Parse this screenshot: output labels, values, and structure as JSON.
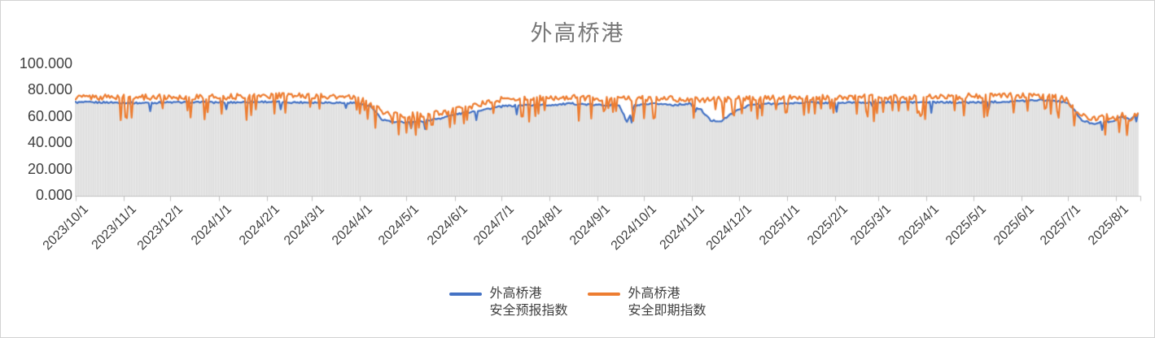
{
  "title": "外高桥港",
  "colors": {
    "series_blue": "#4472C4",
    "series_orange": "#ED7D31",
    "bars": "#D9D9D9",
    "axis_line": "#BFBFBF",
    "tick_label": "#404040",
    "title_text": "#787878"
  },
  "legend": {
    "items": [
      {
        "line1": "外高桥港",
        "line2": "安全预报指数",
        "color": "#4472C4"
      },
      {
        "line1": "外高桥港",
        "line2": "安全即期指数",
        "color": "#ED7D31"
      }
    ]
  },
  "chart_data": {
    "type": "line",
    "title": "外高桥港",
    "xlabel": "",
    "ylabel": "",
    "grid": false,
    "legend_position": "bottom",
    "ylim": [
      0,
      100
    ],
    "y_ticks": [
      [
        0,
        "0.000"
      ],
      [
        20,
        "20.000"
      ],
      [
        40,
        "40.000"
      ],
      [
        60,
        "60.000"
      ],
      [
        80,
        "80.000"
      ],
      [
        100,
        "100.000"
      ]
    ],
    "x_tick_labels": [
      "2023/10/1",
      "2023/11/1",
      "2023/12/1",
      "2024/1/1",
      "2024/2/1",
      "2024/3/1",
      "2024/4/1",
      "2024/5/1",
      "2024/6/1",
      "2024/7/1",
      "2024/8/1",
      "2024/9/1",
      "2024/10/1",
      "2024/11/1",
      "2024/12/1",
      "2025/1/1",
      "2025/2/1",
      "2025/3/1",
      "2025/4/1",
      "2025/5/1",
      "2025/6/1",
      "2025/7/1",
      "2025/8/1"
    ],
    "month_start_days": [
      0,
      31,
      61,
      92,
      123,
      152,
      183,
      213,
      244,
      274,
      305,
      336,
      366,
      397,
      427,
      458,
      489,
      517,
      548,
      578,
      609,
      639,
      670
    ],
    "total_days": 684,
    "x_unit": "daily index values from 2023/10/1 to mid-August 2025",
    "background_bars": {
      "color": "#D9D9D9",
      "mode": "min-of-series",
      "note": "light gray daily columns under the two lines"
    },
    "series": [
      {
        "name": "外高桥港安全预报指数",
        "color": "#4472C4",
        "seed": 1,
        "noise_amp": 0.7,
        "dip_rate": 0.025,
        "dip_depth": [
          3,
          8
        ],
        "points": [
          [
            0,
            71
          ],
          [
            20,
            71
          ],
          [
            40,
            70.5
          ],
          [
            60,
            71
          ],
          [
            80,
            71
          ],
          [
            100,
            71
          ],
          [
            120,
            71.5
          ],
          [
            140,
            71
          ],
          [
            160,
            71
          ],
          [
            180,
            70.5
          ],
          [
            190,
            68
          ],
          [
            197,
            58
          ],
          [
            205,
            56
          ],
          [
            215,
            56
          ],
          [
            225,
            57
          ],
          [
            235,
            59
          ],
          [
            245,
            62
          ],
          [
            255,
            64
          ],
          [
            265,
            66
          ],
          [
            275,
            68
          ],
          [
            290,
            69
          ],
          [
            305,
            69
          ],
          [
            320,
            70
          ],
          [
            335,
            69
          ],
          [
            350,
            69
          ],
          [
            355,
            56
          ],
          [
            360,
            68.5
          ],
          [
            375,
            70
          ],
          [
            385,
            69
          ],
          [
            395,
            70
          ],
          [
            403,
            65
          ],
          [
            409,
            57
          ],
          [
            416,
            57
          ],
          [
            422,
            62
          ],
          [
            428,
            66
          ],
          [
            434,
            69
          ],
          [
            445,
            70
          ],
          [
            458,
            70
          ],
          [
            470,
            71
          ],
          [
            489,
            70.5
          ],
          [
            505,
            71
          ],
          [
            517,
            71
          ],
          [
            535,
            71
          ],
          [
            548,
            71
          ],
          [
            565,
            71
          ],
          [
            578,
            71
          ],
          [
            595,
            71.5
          ],
          [
            609,
            72
          ],
          [
            620,
            73
          ],
          [
            632,
            72
          ],
          [
            639,
            71
          ],
          [
            643,
            65
          ],
          [
            648,
            57
          ],
          [
            655,
            55
          ],
          [
            662,
            56
          ],
          [
            668,
            57
          ],
          [
            674,
            60
          ],
          [
            679,
            58
          ],
          [
            684,
            62
          ]
        ]
      },
      {
        "name": "外高桥港安全即期指数",
        "color": "#ED7D31",
        "seed": 2,
        "noise_amp": 2.2,
        "dip_rate": 0.16,
        "dip_depth": [
          8,
          17
        ],
        "points": [
          [
            0,
            75
          ],
          [
            30,
            75
          ],
          [
            61,
            75
          ],
          [
            92,
            75
          ],
          [
            123,
            76
          ],
          [
            152,
            76
          ],
          [
            183,
            74
          ],
          [
            192,
            68
          ],
          [
            200,
            62
          ],
          [
            213,
            61
          ],
          [
            225,
            62
          ],
          [
            235,
            63
          ],
          [
            244,
            65
          ],
          [
            255,
            68
          ],
          [
            265,
            71
          ],
          [
            274,
            73
          ],
          [
            290,
            74
          ],
          [
            305,
            74
          ],
          [
            320,
            75
          ],
          [
            336,
            74
          ],
          [
            350,
            74
          ],
          [
            366,
            74
          ],
          [
            380,
            74
          ],
          [
            397,
            73
          ],
          [
            410,
            73
          ],
          [
            427,
            74
          ],
          [
            445,
            74
          ],
          [
            458,
            75
          ],
          [
            470,
            75
          ],
          [
            489,
            75
          ],
          [
            505,
            75
          ],
          [
            517,
            75
          ],
          [
            535,
            75
          ],
          [
            548,
            75
          ],
          [
            565,
            75
          ],
          [
            578,
            76
          ],
          [
            595,
            76
          ],
          [
            609,
            76
          ],
          [
            620,
            76
          ],
          [
            630,
            75
          ],
          [
            639,
            73
          ],
          [
            644,
            63
          ],
          [
            650,
            60
          ],
          [
            656,
            59
          ],
          [
            662,
            61
          ],
          [
            668,
            58
          ],
          [
            674,
            62
          ],
          [
            679,
            57
          ],
          [
            684,
            63
          ]
        ]
      }
    ]
  }
}
